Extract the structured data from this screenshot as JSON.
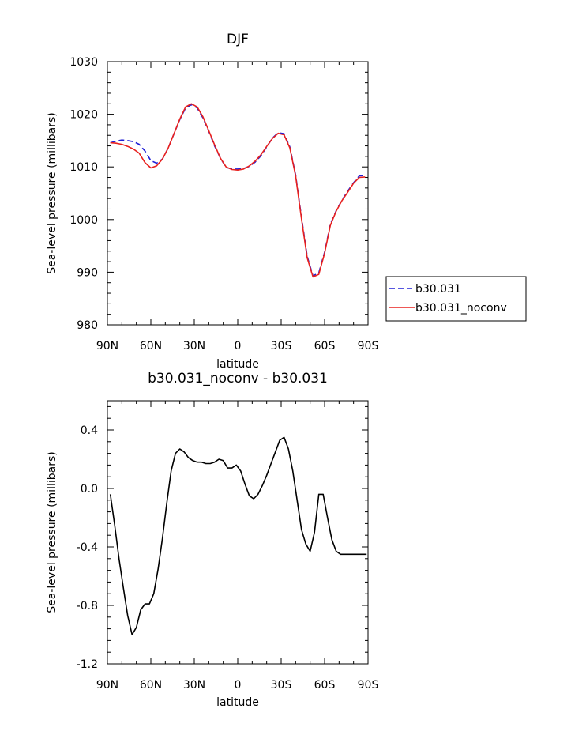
{
  "chart_data": [
    {
      "type": "line",
      "title": "DJF",
      "xlabel": "latitude",
      "ylabel": "Sea-level pressure (millibars)",
      "x_ticks": [
        "90N",
        "60N",
        "30N",
        "0",
        "30S",
        "60S",
        "90S"
      ],
      "xlim": [
        -90,
        90
      ],
      "y_ticks": [
        "980",
        "990",
        "1000",
        "1010",
        "1020",
        "1030"
      ],
      "ylim": [
        980,
        1030
      ],
      "legend_position": "right",
      "series": [
        {
          "name": "b30.031",
          "color": "#1f1fd6",
          "dash": "dashed",
          "x": [
            -88,
            -84,
            -80,
            -76,
            -72,
            -68,
            -64,
            -60,
            -56,
            -52,
            -48,
            -44,
            -40,
            -36,
            -32,
            -28,
            -24,
            -20,
            -16,
            -12,
            -8,
            -4,
            0,
            4,
            8,
            12,
            16,
            20,
            24,
            28,
            32,
            36,
            40,
            44,
            48,
            52,
            56,
            60,
            64,
            68,
            72,
            76,
            80,
            84,
            88
          ],
          "y": [
            1014.6,
            1014.9,
            1015.1,
            1015.0,
            1014.8,
            1014.3,
            1013.0,
            1011.2,
            1010.7,
            1011.5,
            1013.6,
            1016.3,
            1019.0,
            1021.2,
            1021.8,
            1021.2,
            1019.3,
            1016.8,
            1014.0,
            1011.7,
            1009.9,
            1009.6,
            1009.6,
            1009.7,
            1010.1,
            1010.9,
            1012.1,
            1013.8,
            1015.5,
            1016.5,
            1016.3,
            1013.8,
            1008.5,
            1000.5,
            993.0,
            989.3,
            989.9,
            993.8,
            999.1,
            1001.7,
            1003.7,
            1005.4,
            1007.0,
            1008.3,
            1008.4
          ]
        },
        {
          "name": "b30.031_noconv",
          "color": "#e8201e",
          "dash": "solid",
          "x": [
            -88,
            -84,
            -80,
            -76,
            -72,
            -68,
            -64,
            -60,
            -56,
            -52,
            -48,
            -44,
            -40,
            -36,
            -32,
            -28,
            -24,
            -20,
            -16,
            -12,
            -8,
            -4,
            0,
            4,
            8,
            12,
            16,
            20,
            24,
            28,
            32,
            36,
            40,
            44,
            48,
            52,
            56,
            60,
            64,
            68,
            72,
            76,
            80,
            84,
            88
          ],
          "y": [
            1014.6,
            1014.5,
            1014.3,
            1013.9,
            1013.4,
            1012.6,
            1010.8,
            1009.8,
            1010.2,
            1011.5,
            1013.6,
            1016.3,
            1019.1,
            1021.4,
            1022.0,
            1021.4,
            1019.5,
            1016.9,
            1014.2,
            1011.7,
            1010.0,
            1009.5,
            1009.4,
            1009.6,
            1010.2,
            1011.1,
            1012.3,
            1013.9,
            1015.4,
            1016.4,
            1016.1,
            1013.6,
            1008.3,
            1000.2,
            992.7,
            989.1,
            989.6,
            993.6,
            998.9,
            1001.6,
            1003.6,
            1005.2,
            1006.9,
            1008.0,
            1008.1
          ]
        }
      ]
    },
    {
      "type": "line",
      "title": "b30.031_noconv - b30.031",
      "xlabel": "latitude",
      "ylabel": "Sea-level pressure (millibars)",
      "x_ticks": [
        "90N",
        "60N",
        "30N",
        "0",
        "30S",
        "60S",
        "90S"
      ],
      "xlim": [
        -90,
        90
      ],
      "y_ticks": [
        "-1.2",
        "-0.8",
        "-0.4",
        "0.0",
        "0.4"
      ],
      "ylim": [
        -1.2,
        0.6
      ],
      "series": [
        {
          "color": "#000000",
          "dash": "solid",
          "x": [
            -88,
            -85,
            -82,
            -79,
            -76,
            -73,
            -70,
            -67,
            -64,
            -61,
            -58,
            -55,
            -52,
            -49,
            -46,
            -43,
            -40,
            -37,
            -34,
            -31,
            -28,
            -25,
            -22,
            -19,
            -16,
            -13,
            -10,
            -7,
            -4,
            -1,
            2,
            5,
            8,
            11,
            14,
            17,
            20,
            23,
            26,
            29,
            32,
            35,
            38,
            41,
            44,
            47,
            50,
            53,
            56,
            59,
            62,
            65,
            68,
            71,
            74,
            77,
            80,
            83,
            86,
            89
          ],
          "y": [
            -0.04,
            -0.25,
            -0.48,
            -0.68,
            -0.87,
            -1.0,
            -0.95,
            -0.83,
            -0.79,
            -0.79,
            -0.72,
            -0.55,
            -0.34,
            -0.1,
            0.12,
            0.24,
            0.27,
            0.25,
            0.21,
            0.19,
            0.18,
            0.18,
            0.17,
            0.17,
            0.18,
            0.2,
            0.19,
            0.14,
            0.14,
            0.16,
            0.12,
            0.03,
            -0.05,
            -0.07,
            -0.04,
            0.02,
            0.09,
            0.17,
            0.25,
            0.33,
            0.35,
            0.27,
            0.12,
            -0.08,
            -0.28,
            -0.38,
            -0.43,
            -0.3,
            -0.04,
            -0.04,
            -0.2,
            -0.35,
            -0.43,
            -0.45,
            -0.45,
            -0.45,
            -0.45,
            -0.45,
            -0.45,
            -0.45
          ]
        }
      ]
    }
  ]
}
